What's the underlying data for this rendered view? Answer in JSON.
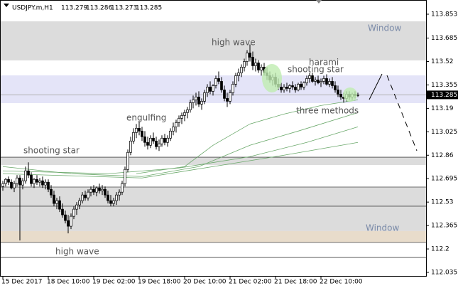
{
  "chart_data": {
    "type": "candlestick",
    "symbol": "USDJPY.m,H1",
    "quote": [
      113.279,
      113.286,
      113.273,
      113.285
    ],
    "ylim": [
      112.01,
      113.948
    ],
    "yticks": [
      113.853,
      113.685,
      113.52,
      113.355,
      113.19,
      113.025,
      112.86,
      112.695,
      112.53,
      112.365,
      112.2,
      112.035
    ],
    "xticks": [
      {
        "value": 0,
        "label": "15 Dec 2017"
      },
      {
        "value": 16,
        "label": "18 Dec 10:00"
      },
      {
        "value": 32,
        "label": "19 Dec 02:00"
      },
      {
        "value": 48,
        "label": "19 Dec 18:00"
      },
      {
        "value": 64,
        "label": "20 Dec 10:00"
      },
      {
        "value": 80,
        "label": "21 Dec 02:00"
      },
      {
        "value": 96,
        "label": "21 Dec 18:00"
      },
      {
        "value": 112,
        "label": "22 Dec 10:00"
      }
    ],
    "candles": [
      [
        112.64,
        112.68,
        112.61,
        112.66
      ],
      [
        112.66,
        112.7,
        112.64,
        112.69
      ],
      [
        112.69,
        112.71,
        112.65,
        112.67
      ],
      [
        112.67,
        112.69,
        112.62,
        112.63
      ],
      [
        112.63,
        112.68,
        112.6,
        112.66
      ],
      [
        112.66,
        112.72,
        112.64,
        112.7
      ],
      [
        112.7,
        112.72,
        112.26,
        112.65
      ],
      [
        112.65,
        112.7,
        112.62,
        112.68
      ],
      [
        112.68,
        112.78,
        112.66,
        112.75
      ],
      [
        112.75,
        112.81,
        112.7,
        112.72
      ],
      [
        112.72,
        112.74,
        112.64,
        112.66
      ],
      [
        112.66,
        112.7,
        112.63,
        112.69
      ],
      [
        112.69,
        112.72,
        112.65,
        112.67
      ],
      [
        112.67,
        112.7,
        112.64,
        112.68
      ],
      [
        112.68,
        112.71,
        112.63,
        112.65
      ],
      [
        112.65,
        112.69,
        112.62,
        112.67
      ],
      [
        112.67,
        112.69,
        112.6,
        112.62
      ],
      [
        112.62,
        112.65,
        112.56,
        112.58
      ],
      [
        112.58,
        112.61,
        112.5,
        112.52
      ],
      [
        112.52,
        112.56,
        112.48,
        112.54
      ],
      [
        112.54,
        112.57,
        112.46,
        112.48
      ],
      [
        112.48,
        112.52,
        112.42,
        112.44
      ],
      [
        112.44,
        112.47,
        112.38,
        112.4
      ],
      [
        112.4,
        112.44,
        112.31,
        112.36
      ],
      [
        112.36,
        112.45,
        112.34,
        112.43
      ],
      [
        112.43,
        112.5,
        112.41,
        112.48
      ],
      [
        112.48,
        112.53,
        112.44,
        112.51
      ],
      [
        112.51,
        112.56,
        112.48,
        112.54
      ],
      [
        112.54,
        112.6,
        112.52,
        112.58
      ],
      [
        112.58,
        112.61,
        112.54,
        112.56
      ],
      [
        112.56,
        112.62,
        112.54,
        112.6
      ],
      [
        112.6,
        112.64,
        112.57,
        112.62
      ],
      [
        112.62,
        112.65,
        112.58,
        112.6
      ],
      [
        112.6,
        112.64,
        112.57,
        112.63
      ],
      [
        112.63,
        112.66,
        112.59,
        112.61
      ],
      [
        112.61,
        112.65,
        112.58,
        112.62
      ],
      [
        112.62,
        112.64,
        112.56,
        112.58
      ],
      [
        112.58,
        112.61,
        112.52,
        112.54
      ],
      [
        112.54,
        112.58,
        112.5,
        112.52
      ],
      [
        112.52,
        112.56,
        112.5,
        112.54
      ],
      [
        112.54,
        112.6,
        112.51,
        112.58
      ],
      [
        112.58,
        112.62,
        112.54,
        112.6
      ],
      [
        112.6,
        112.68,
        112.58,
        112.66
      ],
      [
        112.66,
        112.78,
        112.64,
        112.76
      ],
      [
        112.76,
        112.9,
        112.74,
        112.88
      ],
      [
        112.88,
        112.99,
        112.86,
        112.96
      ],
      [
        112.96,
        113.05,
        112.94,
        113.02
      ],
      [
        113.02,
        113.08,
        112.98,
        113.05
      ],
      [
        113.05,
        113.1,
        113.0,
        113.03
      ],
      [
        113.03,
        113.06,
        112.96,
        112.99
      ],
      [
        112.99,
        113.03,
        112.92,
        112.95
      ],
      [
        112.95,
        112.99,
        112.9,
        112.93
      ],
      [
        112.93,
        113.0,
        112.91,
        112.98
      ],
      [
        112.98,
        113.02,
        112.94,
        112.96
      ],
      [
        112.96,
        112.99,
        112.9,
        112.92
      ],
      [
        112.92,
        112.97,
        112.89,
        112.94
      ],
      [
        112.94,
        113.0,
        112.92,
        112.98
      ],
      [
        112.98,
        113.01,
        112.93,
        112.95
      ],
      [
        112.95,
        113.0,
        112.92,
        112.98
      ],
      [
        112.98,
        113.05,
        112.96,
        113.03
      ],
      [
        113.03,
        113.09,
        113.0,
        113.06
      ],
      [
        113.06,
        113.11,
        113.02,
        113.09
      ],
      [
        113.09,
        113.14,
        113.06,
        113.12
      ],
      [
        113.12,
        113.16,
        113.08,
        113.14
      ],
      [
        113.14,
        113.18,
        113.1,
        113.16
      ],
      [
        113.16,
        113.2,
        113.12,
        113.18
      ],
      [
        113.18,
        113.25,
        113.16,
        113.23
      ],
      [
        113.23,
        113.28,
        113.19,
        113.25
      ],
      [
        113.25,
        113.3,
        113.21,
        113.27
      ],
      [
        113.27,
        113.31,
        113.2,
        113.22
      ],
      [
        113.22,
        113.26,
        113.18,
        113.24
      ],
      [
        113.24,
        113.32,
        113.22,
        113.3
      ],
      [
        113.3,
        113.36,
        113.27,
        113.34
      ],
      [
        113.34,
        113.38,
        113.29,
        113.31
      ],
      [
        113.31,
        113.36,
        113.28,
        113.35
      ],
      [
        113.35,
        113.42,
        113.33,
        113.4
      ],
      [
        113.4,
        113.45,
        113.36,
        113.38
      ],
      [
        113.38,
        113.41,
        113.3,
        113.32
      ],
      [
        113.32,
        113.35,
        113.24,
        113.26
      ],
      [
        113.26,
        113.3,
        113.2,
        113.24
      ],
      [
        113.24,
        113.32,
        113.22,
        113.3
      ],
      [
        113.3,
        113.38,
        113.28,
        113.36
      ],
      [
        113.36,
        113.44,
        113.34,
        113.42
      ],
      [
        113.42,
        113.47,
        113.38,
        113.44
      ],
      [
        113.44,
        113.5,
        113.41,
        113.48
      ],
      [
        113.48,
        113.54,
        113.45,
        113.52
      ],
      [
        113.52,
        113.6,
        113.49,
        113.58
      ],
      [
        113.58,
        113.64,
        113.52,
        113.55
      ],
      [
        113.55,
        113.59,
        113.46,
        113.49
      ],
      [
        113.49,
        113.54,
        113.45,
        113.51
      ],
      [
        113.51,
        113.53,
        113.44,
        113.46
      ],
      [
        113.46,
        113.5,
        113.42,
        113.48
      ],
      [
        113.48,
        113.51,
        113.42,
        113.44
      ],
      [
        113.44,
        113.48,
        113.39,
        113.42
      ],
      [
        113.42,
        113.45,
        113.37,
        113.39
      ],
      [
        113.39,
        113.43,
        113.35,
        113.41
      ],
      [
        113.41,
        113.44,
        113.34,
        113.36
      ],
      [
        113.36,
        113.4,
        113.32,
        113.34
      ],
      [
        113.34,
        113.37,
        113.3,
        113.32
      ],
      [
        113.32,
        113.36,
        113.3,
        113.34
      ],
      [
        113.34,
        113.37,
        113.31,
        113.33
      ],
      [
        113.33,
        113.36,
        113.3,
        113.35
      ],
      [
        113.35,
        113.38,
        113.32,
        113.34
      ],
      [
        113.34,
        113.36,
        113.3,
        113.32
      ],
      [
        113.32,
        113.37,
        113.31,
        113.36
      ],
      [
        113.36,
        113.38,
        113.32,
        113.34
      ],
      [
        113.34,
        113.38,
        113.32,
        113.37
      ],
      [
        113.37,
        113.42,
        113.35,
        113.4
      ],
      [
        113.4,
        113.44,
        113.37,
        113.42
      ],
      [
        113.42,
        113.44,
        113.37,
        113.38
      ],
      [
        113.38,
        113.41,
        113.35,
        113.39
      ],
      [
        113.39,
        113.42,
        113.36,
        113.37
      ],
      [
        113.37,
        113.4,
        113.34,
        113.38
      ],
      [
        113.38,
        113.42,
        113.36,
        113.4
      ],
      [
        113.4,
        113.43,
        113.35,
        113.36
      ],
      [
        113.36,
        113.4,
        113.34,
        113.38
      ],
      [
        113.38,
        113.41,
        113.33,
        113.35
      ],
      [
        113.35,
        113.38,
        113.3,
        113.32
      ],
      [
        113.32,
        113.35,
        113.27,
        113.29
      ],
      [
        113.29,
        113.32,
        113.25,
        113.27
      ],
      [
        113.27,
        113.3,
        113.23,
        113.26
      ],
      [
        113.26,
        113.31,
        113.24,
        113.29
      ],
      [
        113.29,
        113.31,
        113.25,
        113.27
      ],
      [
        113.27,
        113.3,
        113.25,
        113.29
      ],
      [
        113.29,
        113.31,
        113.26,
        113.28
      ],
      [
        113.28,
        113.3,
        113.27,
        113.285
      ]
    ],
    "averages": [
      {
        "color": "#6aa86a",
        "x": [
          47,
          64,
          74,
          87,
          99,
          112,
          125
        ],
        "values": [
          112.73,
          112.78,
          112.93,
          113.08,
          113.15,
          113.21,
          113.25
        ]
      },
      {
        "color": "#6aa86a",
        "x": [
          0,
          24,
          49,
          69,
          87,
          104,
          125
        ],
        "values": [
          112.78,
          112.73,
          112.71,
          112.78,
          112.93,
          113.03,
          113.16
        ]
      },
      {
        "color": "#6aa86a",
        "x": [
          0,
          37,
          62,
          87,
          107,
          125
        ],
        "values": [
          112.75,
          112.73,
          112.77,
          112.85,
          112.95,
          113.06
        ]
      },
      {
        "color": "#6aa86a",
        "x": [
          0,
          49,
          74,
          99,
          125
        ],
        "values": [
          112.73,
          112.7,
          112.78,
          112.86,
          112.95
        ]
      }
    ],
    "zones": [
      {
        "range": [
          113.528,
          113.803
        ],
        "color": "#dcdcdc"
      },
      {
        "range": [
          113.227,
          113.422
        ],
        "color": "#e4e4f8"
      },
      {
        "range": [
          112.791,
          112.846
        ],
        "color": "#dcdcdc"
      },
      {
        "range": [
          112.326,
          112.636
        ],
        "color": "#dcdcdc"
      },
      {
        "range": [
          112.246,
          112.326
        ],
        "color": "#e8dccb"
      }
    ],
    "levels": [
      112.846,
      112.636,
      112.501,
      112.246,
      112.14
    ],
    "annotations": [
      "Window",
      "high wave",
      "harami",
      "shooting star",
      "three methods",
      "engulfing",
      "shooting star",
      "high wave",
      "Window"
    ]
  }
}
